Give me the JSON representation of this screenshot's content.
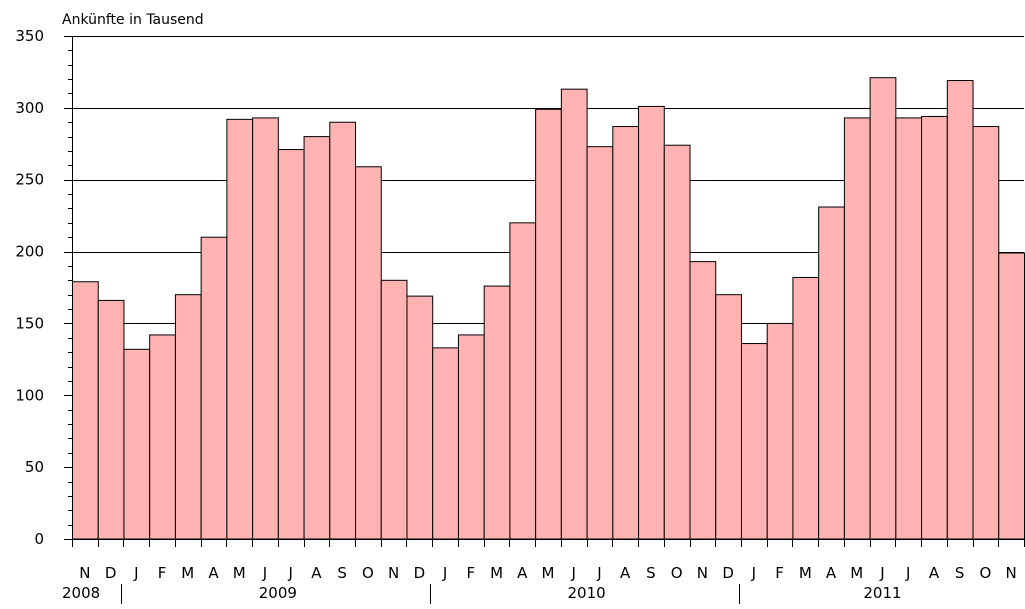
{
  "chart_data": {
    "type": "bar",
    "ylabel": "Ankünfte in Tausend",
    "ylim": [
      0,
      350
    ],
    "yticks": [
      0,
      50,
      100,
      150,
      200,
      250,
      300,
      350
    ],
    "grid": true,
    "categories": [
      "N",
      "D",
      "J",
      "F",
      "M",
      "A",
      "M",
      "J",
      "J",
      "A",
      "S",
      "O",
      "N",
      "D",
      "J",
      "F",
      "M",
      "A",
      "M",
      "J",
      "J",
      "A",
      "S",
      "O",
      "N",
      "D",
      "J",
      "F",
      "M",
      "A",
      "M",
      "J",
      "J",
      "A",
      "S",
      "O",
      "N"
    ],
    "values": [
      179,
      166,
      132,
      142,
      170,
      210,
      292,
      293,
      271,
      280,
      290,
      259,
      180,
      169,
      133,
      142,
      176,
      220,
      299,
      313,
      273,
      287,
      301,
      274,
      193,
      170,
      136,
      150,
      182,
      231,
      293,
      321,
      293,
      294,
      319,
      287,
      199
    ],
    "years": [
      {
        "label": "2008",
        "start": 0,
        "end": 1
      },
      {
        "label": "2009",
        "start": 2,
        "end": 13
      },
      {
        "label": "2010",
        "start": 14,
        "end": 25
      },
      {
        "label": "2011",
        "start": 26,
        "end": 36
      }
    ],
    "colors": {
      "bar": "#ffb3b3",
      "bar_stroke": "#000000",
      "grid": "#000000"
    }
  }
}
